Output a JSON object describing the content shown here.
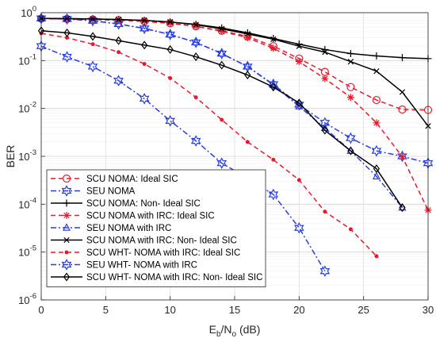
{
  "chart_data": {
    "type": "line",
    "title": "",
    "xlabel": {
      "main": "E",
      "sub1": "b",
      "mid": "/N",
      "sub2": "o",
      "tail": " (dB)"
    },
    "ylabel": "BER",
    "xlim": [
      0,
      30
    ],
    "ylim": [
      1e-06,
      1
    ],
    "yscale": "log",
    "grid": true,
    "legend_position": "bottom-left",
    "x_ticks": [
      "0",
      "5",
      "10",
      "15",
      "20",
      "25",
      "30"
    ],
    "y_ticks": [
      {
        "base": "10",
        "exp": "-6"
      },
      {
        "base": "10",
        "exp": "-5"
      },
      {
        "base": "10",
        "exp": "-4"
      },
      {
        "base": "10",
        "exp": "-3"
      },
      {
        "base": "10",
        "exp": "-2"
      },
      {
        "base": "10",
        "exp": "-1"
      },
      {
        "base": "10",
        "exp": "0"
      }
    ],
    "series": [
      {
        "name": "SCU NOMA: Ideal SIC",
        "color": "#e8192c",
        "dash": "dashed",
        "marker": "circle-open",
        "x": [
          0,
          2,
          4,
          6,
          8,
          10,
          12,
          14,
          16,
          18,
          20,
          22,
          24,
          26,
          28,
          30
        ],
        "y": [
          0.75,
          0.74,
          0.72,
          0.7,
          0.66,
          0.6,
          0.52,
          0.42,
          0.32,
          0.2,
          0.11,
          0.058,
          0.028,
          0.015,
          0.0095,
          0.0093
        ]
      },
      {
        "name": "SEU NOMA",
        "color": "#2a3fe0",
        "dash": "dashdot",
        "marker": "hexagram-open",
        "x": [
          0,
          2,
          4,
          6,
          8,
          10,
          12,
          14,
          16,
          18,
          20,
          22,
          24,
          26,
          28,
          30
        ],
        "y": [
          0.76,
          0.74,
          0.68,
          0.58,
          0.47,
          0.35,
          0.24,
          0.14,
          0.075,
          0.032,
          0.012,
          0.005,
          0.0024,
          0.0013,
          0.001,
          0.00072
        ]
      },
      {
        "name": "SCU NOMA: Non- Ideal SIC",
        "color": "#000000",
        "dash": "solid",
        "marker": "plus",
        "x": [
          0,
          2,
          4,
          6,
          8,
          10,
          12,
          14,
          16,
          18,
          20,
          22,
          24,
          26,
          28,
          30
        ],
        "y": [
          0.76,
          0.75,
          0.74,
          0.72,
          0.69,
          0.64,
          0.57,
          0.48,
          0.38,
          0.29,
          0.22,
          0.17,
          0.14,
          0.125,
          0.115,
          0.11
        ]
      },
      {
        "name": "SCU NOMA with IRC: Ideal SIC",
        "color": "#e8192c",
        "dash": "dashed",
        "marker": "asterisk",
        "x": [
          0,
          2,
          4,
          6,
          8,
          10,
          12,
          14,
          16,
          18,
          20,
          22,
          24,
          26,
          28,
          30
        ],
        "y": [
          0.75,
          0.74,
          0.72,
          0.7,
          0.66,
          0.6,
          0.52,
          0.41,
          0.3,
          0.18,
          0.095,
          0.042,
          0.017,
          0.005,
          0.00098,
          7.5e-05
        ]
      },
      {
        "name": "SEU NOMA with IRC",
        "color": "#2a3fe0",
        "dash": "dashdot",
        "marker": "triangle-open",
        "x": [
          0,
          2,
          4,
          6,
          8,
          10,
          12,
          14,
          16,
          18,
          20,
          22,
          24,
          26,
          28
        ],
        "y": [
          0.76,
          0.74,
          0.68,
          0.58,
          0.47,
          0.35,
          0.24,
          0.14,
          0.075,
          0.031,
          0.011,
          0.0039,
          0.0013,
          0.00038,
          8.5e-05
        ]
      },
      {
        "name": "SCU NOMA with IRC:  Non- Ideal SIC",
        "color": "#000000",
        "dash": "solid",
        "marker": "cross",
        "x": [
          0,
          2,
          4,
          6,
          8,
          10,
          12,
          14,
          16,
          18,
          20,
          22,
          24,
          26,
          28,
          30
        ],
        "y": [
          0.76,
          0.75,
          0.74,
          0.72,
          0.69,
          0.64,
          0.56,
          0.46,
          0.36,
          0.28,
          0.2,
          0.15,
          0.095,
          0.06,
          0.022,
          0.0043
        ]
      },
      {
        "name": "SCU WHT- NOMA with IRC: Ideal SIC",
        "color": "#e8192c",
        "dash": "dashed",
        "marker": "dot",
        "x": [
          0,
          2,
          4,
          6,
          8,
          10,
          12,
          14,
          16,
          18,
          20,
          22,
          24,
          26
        ],
        "y": [
          0.37,
          0.3,
          0.22,
          0.15,
          0.085,
          0.043,
          0.017,
          0.0058,
          0.002,
          0.00085,
          0.00032,
          7e-05,
          3e-05,
          8.2e-06
        ]
      },
      {
        "name": "SEU WHT- NOMA with IRC",
        "color": "#2a3fe0",
        "dash": "dashdot",
        "marker": "hexagram-open",
        "x": [
          0,
          2,
          4,
          6,
          8,
          10,
          12,
          14,
          16,
          18,
          20,
          22
        ],
        "y": [
          0.2,
          0.12,
          0.075,
          0.038,
          0.016,
          0.0055,
          0.0021,
          0.00072,
          0.00035,
          0.00016,
          3.2e-05,
          4e-06
        ]
      },
      {
        "name": "SCU WHT- NOMA with IRC: Non- Ideal SIC",
        "color": "#000000",
        "dash": "solid",
        "marker": "diamond-open",
        "x": [
          0,
          2,
          4,
          6,
          8,
          10,
          12,
          14,
          16,
          18,
          20,
          22,
          24,
          26,
          28
        ],
        "y": [
          0.42,
          0.38,
          0.32,
          0.26,
          0.21,
          0.17,
          0.12,
          0.08,
          0.05,
          0.028,
          0.013,
          0.0035,
          0.0013,
          0.00055,
          8.5e-05
        ]
      }
    ]
  }
}
